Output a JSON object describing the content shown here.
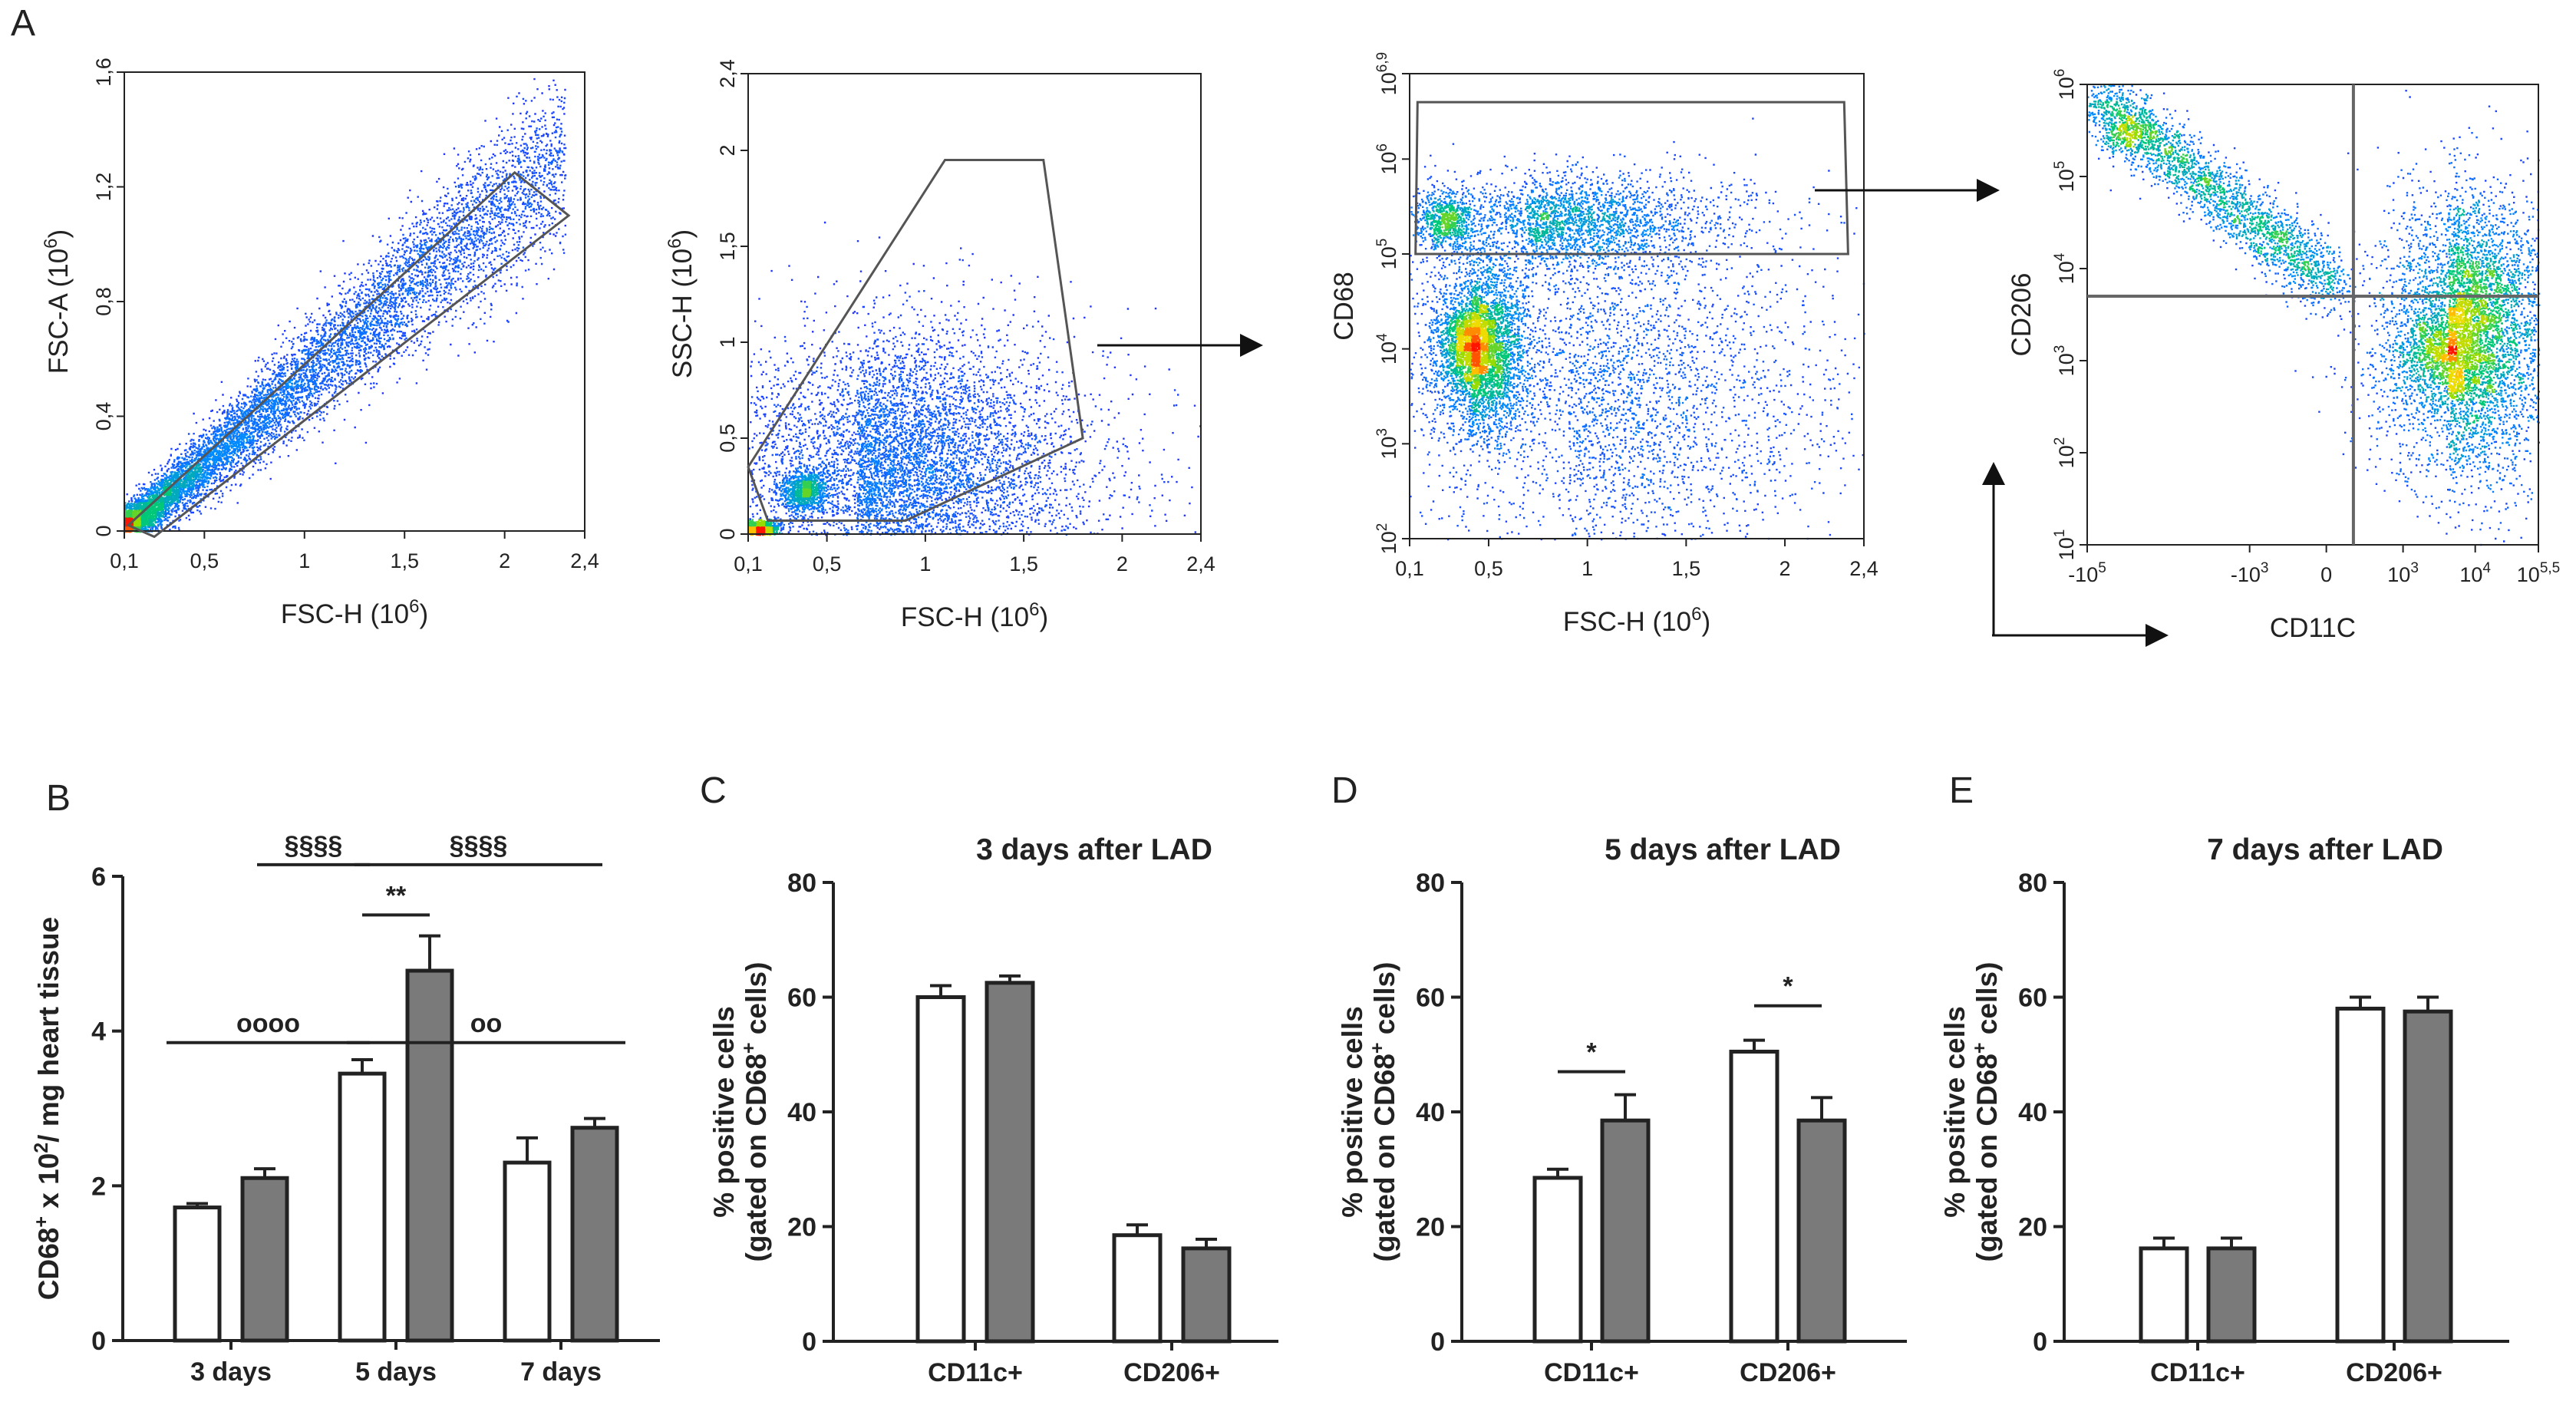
{
  "figure": {
    "panel_letters": [
      "A",
      "B",
      "C",
      "D",
      "E"
    ],
    "colors": {
      "axis": "#222222",
      "bar_open": "#ffffff",
      "bar_filled": "#7a7a7a",
      "gate": "#555555",
      "dot_low": "#1a1aff",
      "dot_mid": "#00cc55",
      "dot_high": "#ff2200"
    }
  },
  "chart_data": [
    {
      "id": "A1",
      "type": "scatter",
      "subtype": "flow-cytometry-density",
      "xlabel": "FSC-H (10",
      "xlabel_sup": "6",
      "xlabel_end": ")",
      "ylabel": "FSC-A (10",
      "ylabel_sup": "6",
      "ylabel_end": ")",
      "xlim": [
        0.1,
        2.4
      ],
      "ylim": [
        0,
        1.6
      ],
      "xticks": [
        {
          "v": 0.1,
          "t": "0,1"
        },
        {
          "v": 0.5,
          "t": "0,5"
        },
        {
          "v": 1,
          "t": "1"
        },
        {
          "v": 1.5,
          "t": "1,5"
        },
        {
          "v": 2,
          "t": "2"
        },
        {
          "v": 2.4,
          "t": "2,4"
        }
      ],
      "yticks": [
        {
          "v": 0,
          "t": "0"
        },
        {
          "v": 0.4,
          "t": "0,4"
        },
        {
          "v": 0.8,
          "t": "0,8"
        },
        {
          "v": 1.2,
          "t": "1,2"
        },
        {
          "v": 1.6,
          "t": "1,6"
        }
      ],
      "gate": [
        [
          0.12,
          0.02
        ],
        [
          2.05,
          1.25
        ],
        [
          2.32,
          1.1
        ],
        [
          0.25,
          -0.02
        ]
      ],
      "populations": [
        {
          "kind": "diagonal",
          "x0": 0.1,
          "x1": 2.3,
          "slope": 0.6,
          "spread": 0.12,
          "n": 9000,
          "density": "high-at-origin"
        }
      ]
    },
    {
      "id": "A2",
      "type": "scatter",
      "subtype": "flow-cytometry-density",
      "xlabel": "FSC-H (10",
      "xlabel_sup": "6",
      "xlabel_end": ")",
      "ylabel": "SSC-H (10",
      "ylabel_sup": "6",
      "ylabel_end": ")",
      "xlim": [
        0.1,
        2.4
      ],
      "ylim": [
        0,
        2.4
      ],
      "xticks": [
        {
          "v": 0.1,
          "t": "0,1"
        },
        {
          "v": 0.5,
          "t": "0,5"
        },
        {
          "v": 1,
          "t": "1"
        },
        {
          "v": 1.5,
          "t": "1,5"
        },
        {
          "v": 2,
          "t": "2"
        },
        {
          "v": 2.4,
          "t": "2,4"
        }
      ],
      "yticks": [
        {
          "v": 0,
          "t": "0"
        },
        {
          "v": 0.5,
          "t": "0,5"
        },
        {
          "v": 1,
          "t": "1"
        },
        {
          "v": 1.5,
          "t": "1,5"
        },
        {
          "v": 2,
          "t": "2"
        },
        {
          "v": 2.4,
          "t": "2,4"
        }
      ],
      "gate": [
        [
          0.1,
          0.35
        ],
        [
          1.1,
          1.95
        ],
        [
          1.6,
          1.95
        ],
        [
          1.8,
          0.5
        ],
        [
          0.9,
          0.07
        ],
        [
          0.2,
          0.07
        ]
      ],
      "populations": [
        {
          "kind": "cloud",
          "cx": 0.65,
          "cy": 0.35,
          "sx": 0.45,
          "sy": 0.35,
          "n": 7000
        },
        {
          "kind": "hotspot",
          "cx": 0.38,
          "cy": 0.23,
          "sx": 0.06,
          "sy": 0.05,
          "n": 900
        },
        {
          "kind": "hotspot",
          "cx": 0.15,
          "cy": 0.03,
          "sx": 0.05,
          "sy": 0.02,
          "n": 900
        }
      ]
    },
    {
      "id": "A3",
      "type": "scatter",
      "subtype": "flow-cytometry-density",
      "xlabel": "FSC-H (10",
      "xlabel_sup": "6",
      "xlabel_end": ")",
      "ylabel": "CD68",
      "xlim": [
        0.1,
        2.4
      ],
      "ylim_log10": [
        2,
        6.9
      ],
      "xticks": [
        {
          "v": 0.1,
          "t": "0,1"
        },
        {
          "v": 0.5,
          "t": "0,5"
        },
        {
          "v": 1,
          "t": "1"
        },
        {
          "v": 1.5,
          "t": "1,5"
        },
        {
          "v": 2,
          "t": "2"
        },
        {
          "v": 2.4,
          "t": "2,4"
        }
      ],
      "yticks": [
        {
          "v": 2,
          "b": "10",
          "e": "2"
        },
        {
          "v": 3,
          "b": "10",
          "e": "3"
        },
        {
          "v": 4,
          "b": "10",
          "e": "4"
        },
        {
          "v": 5,
          "b": "10",
          "e": "5"
        },
        {
          "v": 6,
          "b": "10",
          "e": "6"
        },
        {
          "v": 6.9,
          "b": "10",
          "e": "6,9"
        }
      ],
      "gate": [
        [
          0.14,
          6.6
        ],
        [
          2.3,
          6.6
        ],
        [
          2.32,
          5.0
        ],
        [
          0.13,
          5.0
        ]
      ],
      "populations": [
        {
          "kind": "cloud",
          "cx": 0.4,
          "cy": 4.0,
          "sx": 0.12,
          "sy": 0.45,
          "n": 3500
        },
        {
          "kind": "cloud",
          "cx": 0.7,
          "cy": 5.35,
          "sx": 0.4,
          "sy": 0.25,
          "n": 2500
        },
        {
          "kind": "cloud",
          "cx": 0.9,
          "cy": 3.5,
          "sx": 0.55,
          "sy": 0.9,
          "n": 3000
        },
        {
          "kind": "hotspot",
          "cx": 0.4,
          "cy": 4.05,
          "sx": 0.06,
          "sy": 0.18,
          "n": 900
        },
        {
          "kind": "hotspot",
          "cx": 0.28,
          "cy": 5.35,
          "sx": 0.07,
          "sy": 0.15,
          "n": 600
        }
      ]
    },
    {
      "id": "A4",
      "type": "scatter",
      "subtype": "flow-cytometry-density",
      "xlabel": "CD11C",
      "ylabel": "CD206",
      "xlim_biexp": [
        0,
        100
      ],
      "ylim_log10": [
        1,
        6
      ],
      "xticks": [
        {
          "v": 0,
          "b": "-10",
          "e": "5"
        },
        {
          "v": 36,
          "b": "-10",
          "e": "3"
        },
        {
          "v": 53,
          "t": "0"
        },
        {
          "v": 70,
          "b": "10",
          "e": "3"
        },
        {
          "v": 86,
          "b": "10",
          "e": "4"
        },
        {
          "v": 100,
          "b": "10",
          "e": "5,5"
        }
      ],
      "yticks": [
        {
          "v": 1,
          "b": "10",
          "e": "1"
        },
        {
          "v": 2,
          "b": "10",
          "e": "2"
        },
        {
          "v": 3,
          "b": "10",
          "e": "3"
        },
        {
          "v": 4,
          "b": "10",
          "e": "4"
        },
        {
          "v": 5,
          "b": "10",
          "e": "5"
        },
        {
          "v": 6,
          "b": "10",
          "e": "6"
        }
      ],
      "quadrant": {
        "x": 59,
        "y": 3.7
      },
      "populations": [
        {
          "kind": "diagonal",
          "x0": 1,
          "x1": 55,
          "y0": 5.9,
          "y1": 3.8,
          "spread": 0.18,
          "n": 2500
        },
        {
          "kind": "cloud",
          "cx": 80,
          "cy": 3.3,
          "sx": 9,
          "sy": 0.75,
          "n": 5500
        },
        {
          "kind": "hotspot",
          "cx": 78,
          "cy": 3.1,
          "sx": 4,
          "sy": 0.25,
          "n": 700
        },
        {
          "kind": "hotspot",
          "cx": 8,
          "cy": 5.5,
          "sx": 3,
          "sy": 0.12,
          "n": 250
        }
      ]
    },
    {
      "id": "B",
      "type": "bar",
      "ylabel": "CD68",
      "ylabel_sup1": "+",
      "ylabel_mid": " x 10",
      "ylabel_sup2": "2",
      "ylabel_end": "/ mg heart tissue",
      "ylim": [
        0,
        6
      ],
      "yticks": [
        0,
        2,
        4,
        6
      ],
      "categories": [
        "3 days",
        "5 days",
        "7 days"
      ],
      "series": [
        {
          "name": "open",
          "values": [
            1.72,
            3.45,
            2.3
          ],
          "errors": [
            0.05,
            0.18,
            0.32
          ]
        },
        {
          "name": "filled",
          "values": [
            2.1,
            4.78,
            2.75
          ],
          "errors": [
            0.12,
            0.45,
            0.12
          ]
        }
      ],
      "annotations": [
        {
          "text": "§§§§",
          "x1": [
            0,
            1
          ],
          "x2": [
            1,
            0
          ],
          "y": 6.15
        },
        {
          "text": "§§§§",
          "x1": [
            1,
            0
          ],
          "x2": [
            2,
            1
          ],
          "y": 6.15
        },
        {
          "text": "**",
          "x1": [
            1,
            0
          ],
          "x2": [
            1,
            1
          ],
          "y": 5.5
        },
        {
          "text": "oooo",
          "x1": [
            0,
            0
          ],
          "x2": [
            1,
            0
          ],
          "y": 3.85
        },
        {
          "text": "oo",
          "x1": [
            1,
            0
          ],
          "x2": [
            2,
            1
          ],
          "y": 3.85
        }
      ]
    },
    {
      "id": "C",
      "type": "bar",
      "title": "3 days after LAD",
      "ylabel_line1": "% positive cells",
      "ylabel_line2a": "(gated on CD68",
      "ylabel_sup": "+",
      "ylabel_line2b": " cells)",
      "ylim": [
        0,
        80
      ],
      "yticks": [
        0,
        20,
        40,
        60,
        80
      ],
      "categories": [
        "CD11c+",
        "CD206+"
      ],
      "series": [
        {
          "name": "open",
          "values": [
            60,
            18.5
          ],
          "errors": [
            2,
            1.8
          ]
        },
        {
          "name": "filled",
          "values": [
            62.5,
            16.2
          ],
          "errors": [
            1.2,
            1.6
          ]
        }
      ],
      "annotations": []
    },
    {
      "id": "D",
      "type": "bar",
      "title": "5 days after LAD",
      "ylabel_line1": "% positive cells",
      "ylabel_line2a": "(gated on CD68",
      "ylabel_sup": "+",
      "ylabel_line2b": " cells)",
      "ylim": [
        0,
        80
      ],
      "yticks": [
        0,
        20,
        40,
        60,
        80
      ],
      "categories": [
        "CD11c+",
        "CD206+"
      ],
      "series": [
        {
          "name": "open",
          "values": [
            28.5,
            50.5
          ],
          "errors": [
            1.5,
            2
          ]
        },
        {
          "name": "filled",
          "values": [
            38.5,
            38.5
          ],
          "errors": [
            4.5,
            4
          ]
        }
      ],
      "annotations": [
        {
          "text": "*",
          "x1": [
            0,
            0
          ],
          "x2": [
            0,
            1
          ],
          "y": 47
        },
        {
          "text": "*",
          "x1": [
            1,
            0
          ],
          "x2": [
            1,
            1
          ],
          "y": 58.5
        }
      ]
    },
    {
      "id": "E",
      "type": "bar",
      "title": "7 days after LAD",
      "ylabel_line1": "% positive cells",
      "ylabel_line2a": "(gated on CD68",
      "ylabel_sup": "+",
      "ylabel_line2b": " cells)",
      "ylim": [
        0,
        80
      ],
      "yticks": [
        0,
        20,
        40,
        60,
        80
      ],
      "categories": [
        "CD11c+",
        "CD206+"
      ],
      "series": [
        {
          "name": "open",
          "values": [
            16.2,
            58
          ],
          "errors": [
            1.8,
            2
          ]
        },
        {
          "name": "filled",
          "values": [
            16.2,
            57.5
          ],
          "errors": [
            1.8,
            2.5
          ]
        }
      ],
      "annotations": []
    }
  ]
}
